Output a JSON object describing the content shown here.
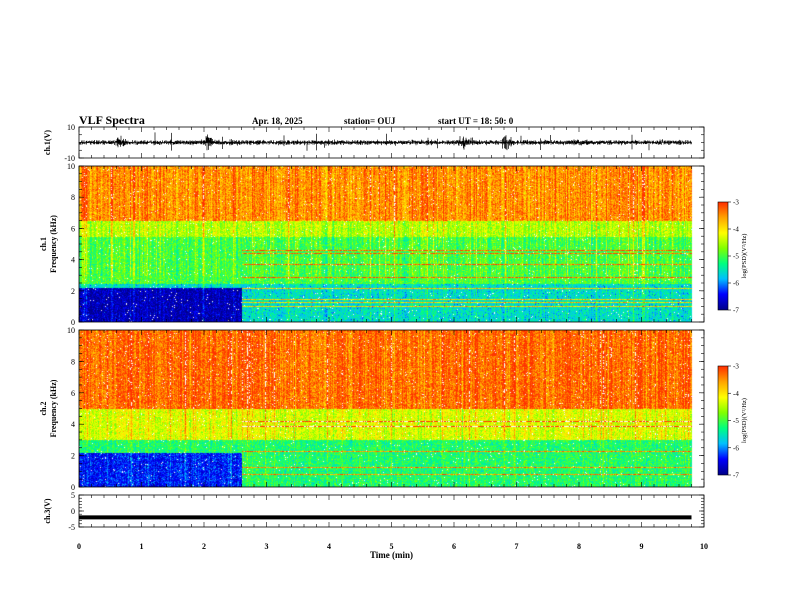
{
  "header": {
    "title": "VLF Spectra",
    "date": "Apr. 18, 2025",
    "station": "station= OUJ",
    "start": "start UT = 18: 50: 0"
  },
  "colors": {
    "scale": [
      "#00008b",
      "#0000ff",
      "#00bfff",
      "#00ff80",
      "#80ff00",
      "#ffff00",
      "#ffa500",
      "#ff3000"
    ]
  },
  "chart_data": [
    {
      "id": "ch1-waveform",
      "type": "line",
      "ylabel": "ch.1(V)",
      "ylim": [
        -10,
        10
      ],
      "yticks": [
        10,
        -10
      ],
      "xlim": [
        0,
        10
      ],
      "data_end_min": 9.8,
      "baseline_V": 0,
      "bursts": [
        {
          "x": 6.85,
          "amp_V": 7
        },
        {
          "x": 6.15,
          "amp_V": 4
        },
        {
          "x": 2.05,
          "amp_V": 5
        },
        {
          "x": 0.65,
          "amp_V": 4
        }
      ]
    },
    {
      "id": "ch1-spectrogram",
      "type": "heatmap",
      "ylabel_1": "ch.1",
      "ylabel_2": "Frequency (kHz)",
      "ylim": [
        0,
        10
      ],
      "yticks": [
        "0",
        "2",
        "4",
        "6",
        "8",
        "10"
      ],
      "xlim": [
        0,
        10
      ],
      "colorbar": {
        "label": "log(PSD)(V²/Hz)",
        "ticks": [
          "-3",
          "-4",
          "-5",
          "-6",
          "-7"
        ],
        "range": [
          -7,
          -3
        ]
      },
      "bands": [
        {
          "fmin": 6.5,
          "fmax": 10,
          "level": -3.5
        },
        {
          "fmin": 5.5,
          "fmax": 6.5,
          "level": -4.5
        },
        {
          "fmin": 2.5,
          "fmax": 5.5,
          "level": -5.0
        },
        {
          "fmin": 0,
          "fmax": 2.5,
          "level": -5.6
        }
      ],
      "lowband_quiet_until_min": 2.6,
      "lines_khz": [
        4.6,
        4.4,
        3.7,
        2.9,
        2.2,
        1.5,
        1.3,
        1.0
      ]
    },
    {
      "id": "ch2-spectrogram",
      "type": "heatmap",
      "ylabel_1": "ch.2",
      "ylabel_2": "Frequency (kHz)",
      "ylim": [
        0,
        10
      ],
      "yticks": [
        "0",
        "2",
        "4",
        "6",
        "8",
        "10"
      ],
      "xlim": [
        0,
        10
      ],
      "colorbar": {
        "label": "log(PSD)(V²/Hz)",
        "ticks": [
          "-3",
          "-4",
          "-5",
          "-6",
          "-7"
        ],
        "range": [
          -7,
          -3
        ]
      },
      "bands": [
        {
          "fmin": 5,
          "fmax": 10,
          "level": -3.3
        },
        {
          "fmin": 3,
          "fmax": 5,
          "level": -4.3
        },
        {
          "fmin": 0,
          "fmax": 3,
          "level": -5.2
        }
      ],
      "lowband_quiet_until_min": 2.6,
      "lines_khz": [
        4.2,
        3.9,
        2.3,
        1.3,
        0.8
      ]
    },
    {
      "id": "ch3-waveform",
      "type": "line",
      "ylabel": "ch.3(V)",
      "ylim": [
        -5,
        5
      ],
      "yticks": [
        5,
        0,
        -5
      ],
      "xlim": [
        0,
        10
      ],
      "data_end_min": 9.8,
      "baseline_V": -2
    }
  ],
  "xaxis": {
    "label": "Time (min)",
    "ticks": [
      "0",
      "1",
      "2",
      "3",
      "4",
      "5",
      "6",
      "7",
      "8",
      "9",
      "10"
    ]
  }
}
